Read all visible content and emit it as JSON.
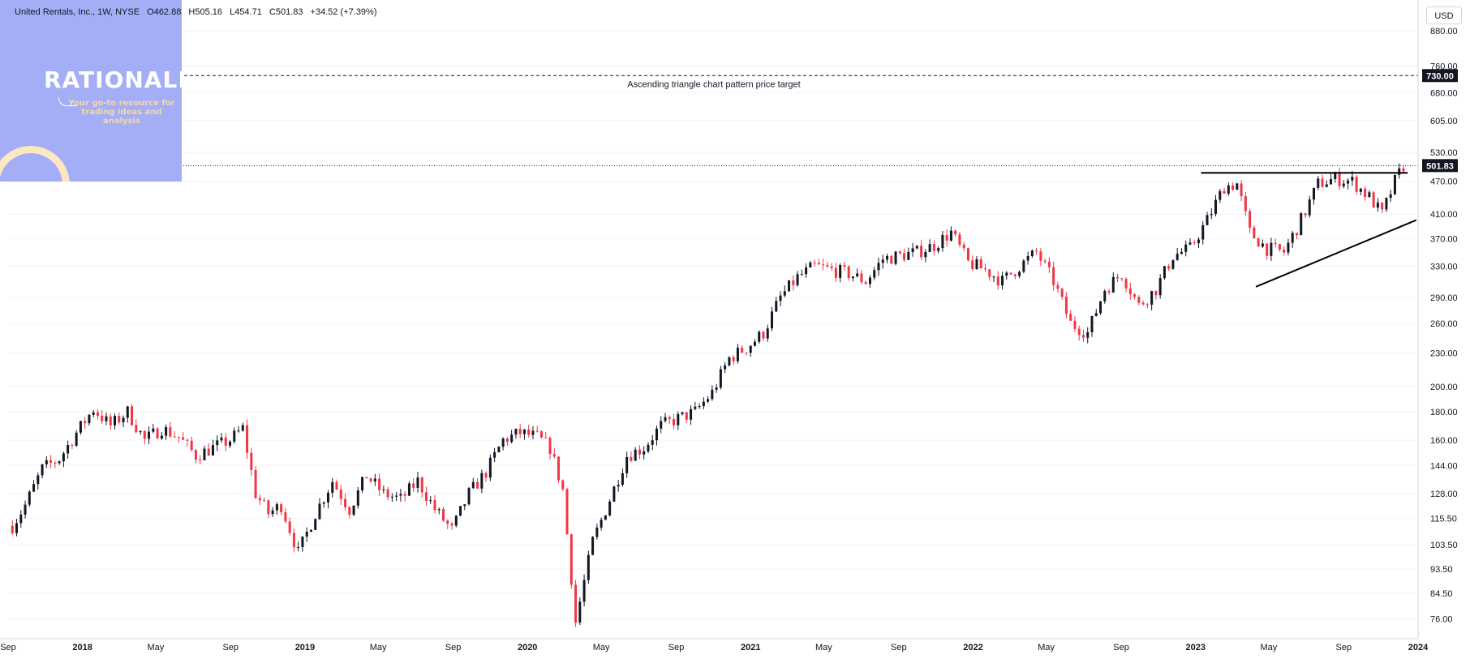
{
  "header": {
    "symbol": "United Rentals, Inc., 1W, NYSE",
    "open": "O462.88",
    "high": "H505.16",
    "low": "L454.71",
    "close": "C501.83",
    "change": "+34.52 (+7.39%)"
  },
  "logo": {
    "name": "RATIONALE",
    "tagline": "Your go-to resource for trading ideas and analysis"
  },
  "currency_button": "USD",
  "colors": {
    "up": "#131722",
    "down": "#f23645",
    "logo_bg": "#a3aef7",
    "grid": "#e0e3eb"
  },
  "chart_data": {
    "type": "candlestick",
    "scale": "log",
    "xlim": [
      "2017-09-01",
      "2024-01-01"
    ],
    "ylim": [
      70,
      1000
    ],
    "x_ticks": [
      "Sep",
      "2018",
      "May",
      "Sep",
      "2019",
      "May",
      "Sep",
      "2020",
      "May",
      "Sep",
      "2021",
      "May",
      "Sep",
      "2022",
      "May",
      "Sep",
      "2023",
      "May",
      "Sep",
      "2024"
    ],
    "y_ticks": [
      "76.00",
      "84.50",
      "93.50",
      "103.50",
      "115.50",
      "128.00",
      "144.00",
      "160.00",
      "180.00",
      "200.00",
      "230.00",
      "260.00",
      "290.00",
      "330.00",
      "370.00",
      "410.00",
      "470.00",
      "530.00",
      "605.00",
      "680.00",
      "760.00",
      "880.00"
    ],
    "last_price_label": "501.83",
    "target_label": "730.00",
    "annotation": "Ascending triangle chart pattern price target",
    "closes": [
      [
        "2017-09-08",
        112
      ],
      [
        "2017-09-29",
        122
      ],
      [
        "2017-10-27",
        142
      ],
      [
        "2017-11-24",
        148
      ],
      [
        "2017-12-22",
        165
      ],
      [
        "2018-01-19",
        182
      ],
      [
        "2018-02-16",
        170
      ],
      [
        "2018-03-16",
        180
      ],
      [
        "2018-04-13",
        160
      ],
      [
        "2018-05-11",
        168
      ],
      [
        "2018-06-08",
        162
      ],
      [
        "2018-07-06",
        150
      ],
      [
        "2018-08-03",
        155
      ],
      [
        "2018-08-31",
        160
      ],
      [
        "2018-09-21",
        168
      ],
      [
        "2018-10-12",
        128
      ],
      [
        "2018-11-02",
        118
      ],
      [
        "2018-11-23",
        122
      ],
      [
        "2018-12-21",
        100
      ],
      [
        "2019-01-18",
        118
      ],
      [
        "2019-02-15",
        135
      ],
      [
        "2019-03-15",
        120
      ],
      [
        "2019-04-12",
        138
      ],
      [
        "2019-05-10",
        128
      ],
      [
        "2019-06-07",
        125
      ],
      [
        "2019-07-05",
        135
      ],
      [
        "2019-08-02",
        120
      ],
      [
        "2019-08-30",
        110
      ],
      [
        "2019-09-27",
        128
      ],
      [
        "2019-10-25",
        140
      ],
      [
        "2019-11-22",
        160
      ],
      [
        "2019-12-20",
        165
      ],
      [
        "2020-01-17",
        162
      ],
      [
        "2020-02-07",
        155
      ],
      [
        "2020-02-28",
        130
      ],
      [
        "2020-03-20",
        75
      ],
      [
        "2020-04-17",
        105
      ],
      [
        "2020-05-15",
        125
      ],
      [
        "2020-06-12",
        150
      ],
      [
        "2020-07-10",
        155
      ],
      [
        "2020-08-07",
        170
      ],
      [
        "2020-09-04",
        175
      ],
      [
        "2020-10-02",
        180
      ],
      [
        "2020-10-30",
        195
      ],
      [
        "2020-11-27",
        225
      ],
      [
        "2020-12-25",
        235
      ],
      [
        "2021-01-22",
        250
      ],
      [
        "2021-02-19",
        290
      ],
      [
        "2021-03-19",
        315
      ],
      [
        "2021-04-16",
        330
      ],
      [
        "2021-05-14",
        325
      ],
      [
        "2021-06-11",
        320
      ],
      [
        "2021-07-09",
        310
      ],
      [
        "2021-08-06",
        340
      ],
      [
        "2021-09-03",
        345
      ],
      [
        "2021-10-01",
        350
      ],
      [
        "2021-10-29",
        360
      ],
      [
        "2021-11-26",
        380
      ],
      [
        "2021-12-24",
        335
      ],
      [
        "2022-01-21",
        325
      ],
      [
        "2022-02-18",
        310
      ],
      [
        "2022-03-18",
        330
      ],
      [
        "2022-04-15",
        350
      ],
      [
        "2022-05-13",
        310
      ],
      [
        "2022-06-10",
        260
      ],
      [
        "2022-07-08",
        250
      ],
      [
        "2022-08-05",
        300
      ],
      [
        "2022-09-02",
        320
      ],
      [
        "2022-09-30",
        280
      ],
      [
        "2022-10-28",
        300
      ],
      [
        "2022-11-25",
        345
      ],
      [
        "2022-12-23",
        355
      ],
      [
        "2023-01-20",
        400
      ],
      [
        "2023-02-17",
        460
      ],
      [
        "2023-03-10",
        465
      ],
      [
        "2023-03-31",
        380
      ],
      [
        "2023-04-28",
        355
      ],
      [
        "2023-05-26",
        350
      ],
      [
        "2023-06-23",
        400
      ],
      [
        "2023-07-21",
        465
      ],
      [
        "2023-08-18",
        475
      ],
      [
        "2023-09-15",
        470
      ],
      [
        "2023-10-13",
        440
      ],
      [
        "2023-11-03",
        410
      ],
      [
        "2023-11-24",
        470
      ],
      [
        "2023-12-08",
        501.83
      ]
    ]
  }
}
